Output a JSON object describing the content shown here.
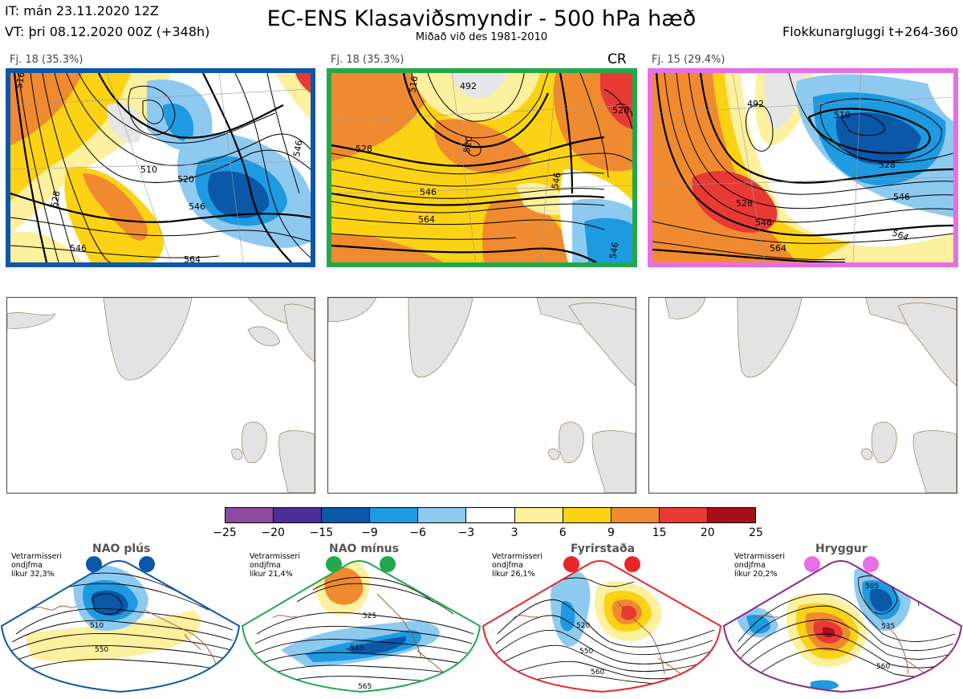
{
  "header": {
    "it_line": "IT: mán 23.11.2020 12Z",
    "vt_line": "VT: þri 08.12.2020 00Z  (+348h)",
    "title": "EC-ENS Klasaviðsmyndir - 500 hPa hæð",
    "subtitle": "Miðað við des 1981-2010",
    "window": "Flokkunargluggi t+264-360"
  },
  "panels": [
    {
      "label": "Fj. 18 (35.3%)",
      "border_color": "#0b57a8",
      "tag": "",
      "contours": [
        "516",
        "510",
        "520",
        "528",
        "546",
        "546",
        "564",
        "546"
      ]
    },
    {
      "label": "Fj. 18 (35.3%)",
      "border_color": "#22a84b",
      "tag": "CR",
      "contours": [
        "492",
        "516",
        "528",
        "528",
        "520",
        "546",
        "546",
        "564",
        "546"
      ]
    },
    {
      "label": "Fj. 15 (29.4%)",
      "border_color": "#e86ee8",
      "tag": "",
      "contours": [
        "492",
        "510",
        "528",
        "528",
        "546",
        "546",
        "564",
        "564"
      ]
    }
  ],
  "colorbar": {
    "colors": [
      "#8d4a9e",
      "#4a2f96",
      "#0b57a8",
      "#1e9ae0",
      "#8ecaf0",
      "#ffffff",
      "#fdf09e",
      "#fcd215",
      "#f08a30",
      "#e83a35",
      "#a90f18"
    ],
    "ticks": [
      "−25",
      "−20",
      "−15",
      "−9",
      "−6",
      "−3",
      "3",
      "6",
      "9",
      "15",
      "20",
      "25"
    ]
  },
  "regimes": [
    {
      "name": "NAO plús",
      "dot_color": "#0b57a8",
      "border_color": "#0b57a8",
      "info": "Vetrarmisseri\nondjfma\nlíkur 32,3%",
      "contours": [
        "510",
        "550"
      ]
    },
    {
      "name": "NAO mínus",
      "dot_color": "#22a84b",
      "border_color": "#22a84b",
      "info": "Vetrarmisseri\nondjfma\nlíkur 21,4%",
      "contours": [
        "525",
        "545",
        "565"
      ]
    },
    {
      "name": "Fyrirstaða",
      "dot_color": "#e8262a",
      "border_color": "#e8262a",
      "info": "Vetrarmisseri\nondjfma\nlíkur 26,1%",
      "contours": [
        "520",
        "550",
        "560"
      ]
    },
    {
      "name": "Hryggur",
      "dot_color": "#e86ee8",
      "border_color": "#8a2a8a",
      "info": "Vetrarmisseri\nondjfma\nlíkur 20,2%",
      "contours": [
        "505",
        "535",
        "560"
      ]
    }
  ]
}
